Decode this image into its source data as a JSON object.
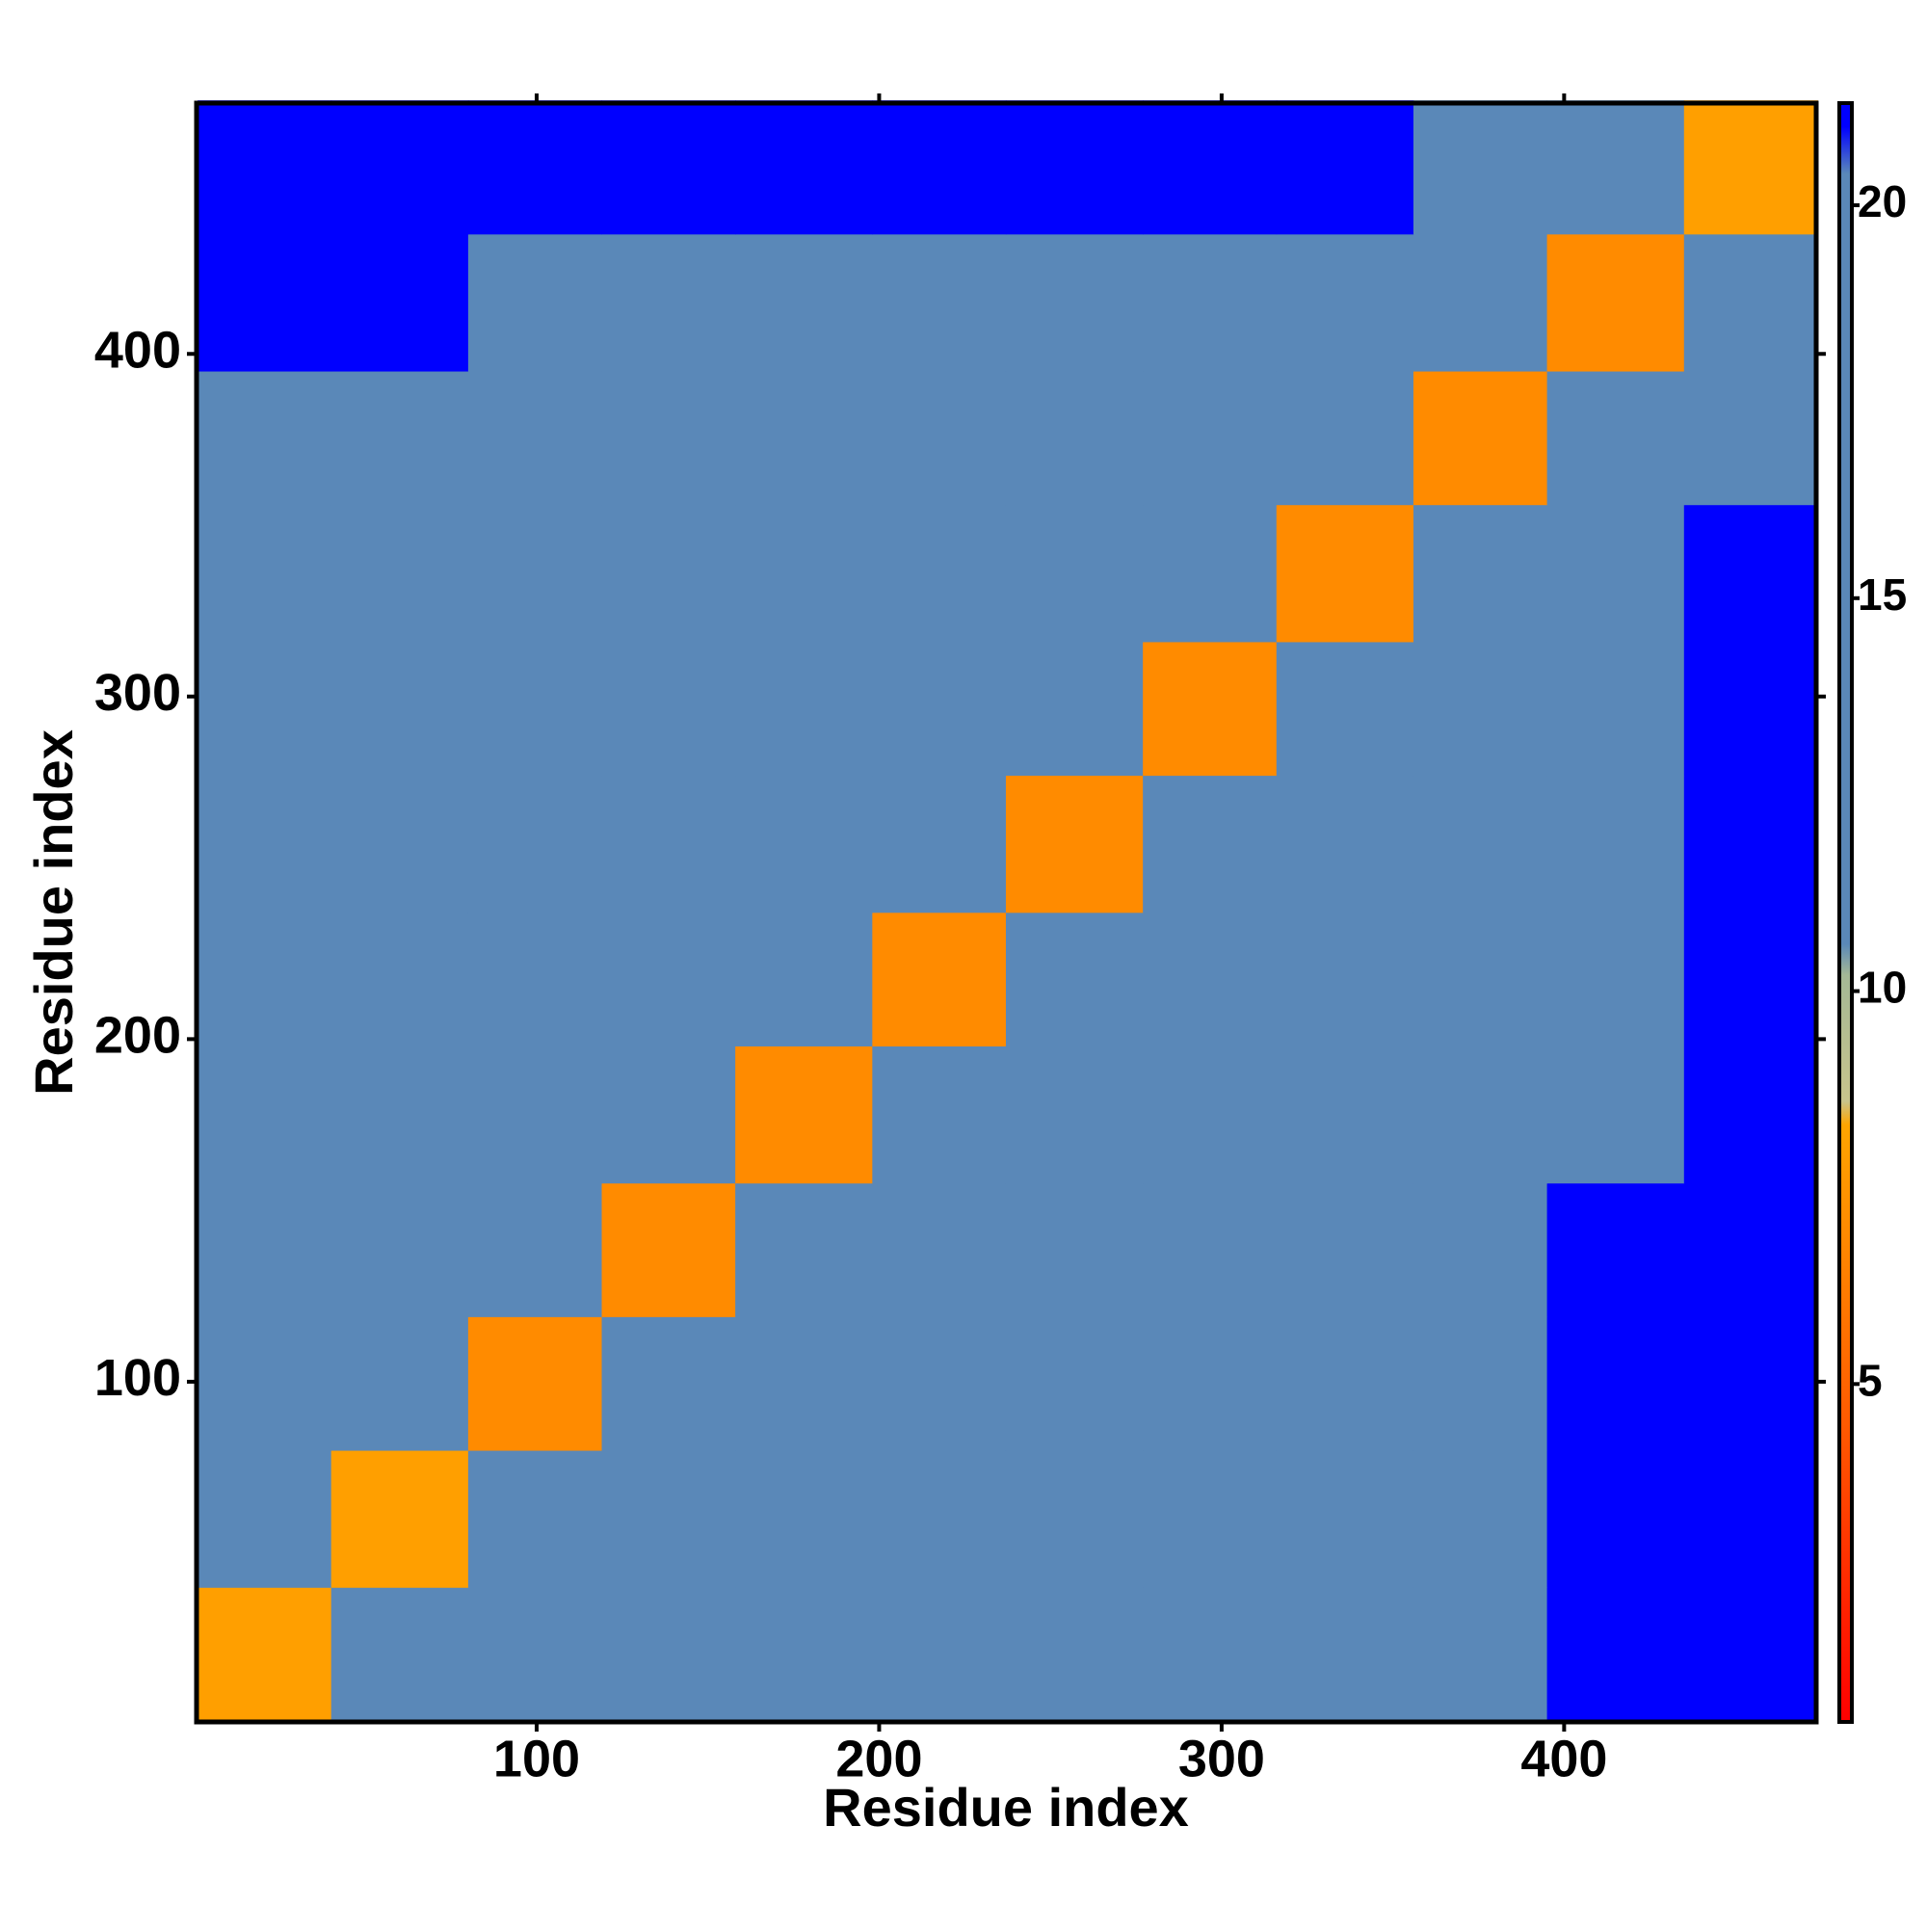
{
  "chart_data": {
    "type": "heatmap",
    "xlabel": "Residue index",
    "ylabel": "Residue index",
    "xlim": [
      0.7,
      473.6
    ],
    "ylim": [
      0.7,
      473.2
    ],
    "xticks": [
      100,
      200,
      300,
      400
    ],
    "yticks": [
      100,
      200,
      300,
      400
    ],
    "x_bins": [
      1,
      40,
      80,
      119,
      158,
      198,
      237,
      277,
      316,
      356,
      395,
      435,
      474
    ],
    "y_bins": [
      1,
      40,
      80,
      119,
      158,
      198,
      237,
      277,
      316,
      356,
      395,
      435,
      474
    ],
    "values": [
      [
        8,
        19,
        19,
        19,
        19,
        19,
        19,
        19,
        19,
        20,
        22,
        22
      ],
      [
        14,
        8,
        16,
        16,
        16,
        16,
        16,
        16,
        16,
        16,
        22,
        22
      ],
      [
        17,
        12,
        7,
        16,
        16,
        16,
        16,
        16,
        16,
        19,
        22,
        22
      ],
      [
        17,
        14,
        12,
        7,
        14,
        16,
        16,
        16,
        16,
        17,
        21,
        22
      ],
      [
        17,
        15,
        13,
        12,
        7,
        14,
        16,
        16,
        16,
        16,
        17,
        22
      ],
      [
        17,
        14,
        13,
        14,
        13,
        7,
        13,
        15,
        16,
        16,
        16,
        22
      ],
      [
        17,
        16,
        16,
        14,
        16,
        12,
        7,
        12,
        14,
        16,
        17,
        22
      ],
      [
        16,
        16,
        16,
        16,
        16,
        14,
        12,
        7,
        13,
        15,
        17,
        22
      ],
      [
        15,
        16,
        16,
        16,
        16,
        16,
        14,
        12,
        7,
        13,
        16,
        21
      ],
      [
        16,
        16,
        16,
        17,
        17,
        16,
        16,
        15,
        13,
        7,
        13,
        18
      ],
      [
        22,
        22,
        19,
        17,
        17,
        17,
        17,
        17,
        16,
        13,
        7,
        15
      ],
      [
        22,
        22,
        22,
        22,
        22,
        22,
        22,
        22,
        21,
        20,
        15,
        8
      ]
    ],
    "clim": [
      0.7,
      21.3
    ],
    "colorbar_ticks": [
      5,
      10,
      15,
      20
    ],
    "colorscale": [
      {
        "value": 0.7,
        "color": "#ff0000"
      },
      {
        "value": 4.5,
        "color": "#ff5a00"
      },
      {
        "value": 8.3,
        "color": "#ffa500"
      },
      {
        "value": 8.6,
        "color": "#c8c48c"
      },
      {
        "value": 10.2,
        "color": "#a4b895"
      },
      {
        "value": 10.6,
        "color": "#5a88b8"
      },
      {
        "value": 20.4,
        "color": "#5a88b8"
      },
      {
        "value": 21.0,
        "color": "#0000ff"
      }
    ]
  }
}
